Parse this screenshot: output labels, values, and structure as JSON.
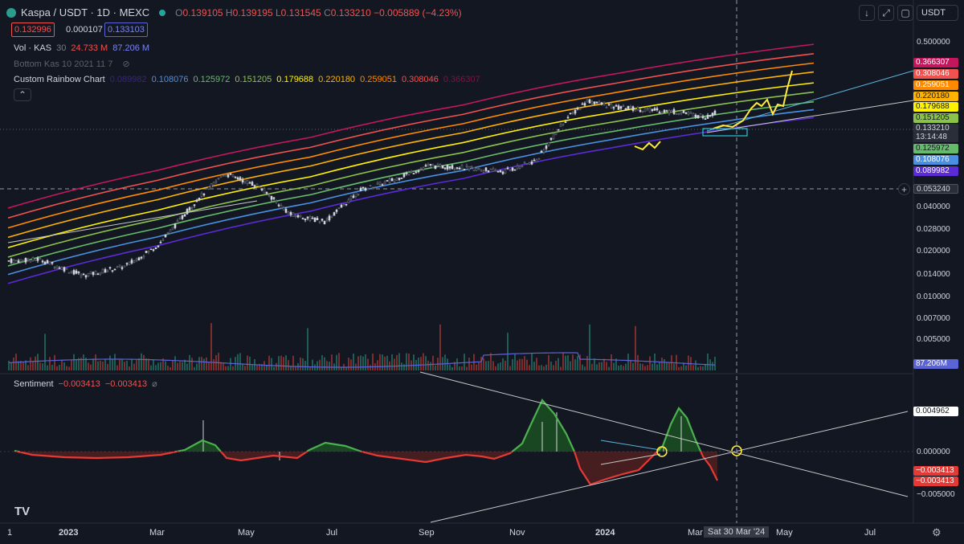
{
  "header": {
    "symbol": "Kaspa / USDT · 1D · MEXC",
    "o_label": "O",
    "o_value": "0.139105",
    "h_label": "H",
    "h_value": "0.139195",
    "l_label": "L",
    "l_value": "0.131545",
    "c_label": "C",
    "c_value": "0.133210",
    "change": "−0.005889 (−4.23%)",
    "bid": "0.132996",
    "spread": "0.000107",
    "ask": "0.133103",
    "currency": "USDT"
  },
  "indicators": {
    "volume": {
      "name": "Vol · KAS",
      "length": "30",
      "value1": "24.733 M",
      "value2": "87.206 M"
    },
    "bottom": {
      "name": "Bottom Kas 10 2021 11 7"
    },
    "rainbow": {
      "name": "Custom Rainbow Chart",
      "values": [
        "0.089982",
        "0.108076",
        "0.125972",
        "0.151205",
        "0.179688",
        "0.220180",
        "0.259051",
        "0.308046",
        "0.366307"
      ]
    },
    "sentiment": {
      "name": "Sentiment",
      "value1": "−0.003413",
      "value2": "−0.003413"
    }
  },
  "colors": {
    "band_colors": [
      "#5b2bd6",
      "#4a90e2",
      "#66bb6a",
      "#8bc34a",
      "#fff200",
      "#ffb300",
      "#ff8a00",
      "#f0524f",
      "#c2185b"
    ],
    "up": "#26a69a",
    "down": "#ef5350",
    "sentiment_pos": "#4caf50",
    "sentiment_neg": "#e53935"
  },
  "price_axis": {
    "ticks": [
      "0.500000",
      "0.040000",
      "0.028000",
      "0.020000",
      "0.014000",
      "0.010000",
      "0.007000",
      "0.005000"
    ],
    "band_labels": [
      "0.366307",
      "0.308046",
      "0.259051",
      "0.220180",
      "0.179688",
      "0.151205",
      "0.133210",
      "13:14:48",
      "0.125972",
      "0.108076",
      "0.089982"
    ],
    "crosshair_price": "0.053240",
    "volume_label": "87.206M"
  },
  "sentiment_axis": {
    "ticks": [
      "0.000000",
      "−0.005000"
    ],
    "labels": [
      "0.004962",
      "−0.003413",
      "−0.003413"
    ]
  },
  "time_axis": {
    "ticks": [
      "1",
      "2023",
      "Mar",
      "May",
      "Jul",
      "Sep",
      "Nov",
      "2024",
      "Mar",
      "May",
      "Jul"
    ],
    "crosshair_date": "Sat 30 Mar '24"
  },
  "chart_data": {
    "type": "line",
    "title": "Kaspa / USDT · 1D · MEXC",
    "scale": "log",
    "ylim": [
      0.0035,
      0.6
    ],
    "x_range": [
      "2022-12-01",
      "2024-08-15"
    ],
    "grid": false,
    "legend": "top-left",
    "series": [
      {
        "name": "Custom Rainbow Chart",
        "dates": [
          "2022-12-01",
          "2023-03-01",
          "2023-06-01",
          "2023-09-01",
          "2023-12-01",
          "2024-03-30"
        ],
        "values": [
          0.0045,
          0.009,
          0.017,
          0.031,
          0.055,
          0.095
        ]
      },
      {
        "dates": [
          "2022-12-01",
          "2023-03-01",
          "2023-06-01",
          "2023-09-01",
          "2023-12-01",
          "2024-03-30"
        ],
        "values": [
          0.0053,
          0.0106,
          0.0198,
          0.036,
          0.064,
          0.11
        ]
      },
      {
        "dates": [
          "2022-12-01",
          "2023-03-01",
          "2023-06-01",
          "2023-09-01",
          "2023-12-01",
          "2024-03-30"
        ],
        "values": [
          0.0062,
          0.0124,
          0.023,
          0.042,
          0.074,
          0.127
        ]
      },
      {
        "dates": [
          "2022-12-01",
          "2023-03-01",
          "2023-06-01",
          "2023-09-01",
          "2023-12-01",
          "2024-03-30"
        ],
        "values": [
          0.0073,
          0.0146,
          0.027,
          0.05,
          0.088,
          0.152
        ]
      },
      {
        "dates": [
          "2022-12-01",
          "2023-03-01",
          "2023-06-01",
          "2023-09-01",
          "2023-12-01",
          "2024-03-30"
        ],
        "values": [
          0.0087,
          0.0173,
          0.032,
          0.06,
          0.105,
          0.18
        ]
      },
      {
        "dates": [
          "2022-12-01",
          "2023-03-01",
          "2023-06-01",
          "2023-09-01",
          "2023-12-01",
          "2024-03-30"
        ],
        "values": [
          0.0105,
          0.021,
          0.039,
          0.072,
          0.127,
          0.22
        ]
      },
      {
        "dates": [
          "2022-12-01",
          "2023-03-01",
          "2023-06-01",
          "2023-09-01",
          "2023-12-01",
          "2024-03-30"
        ],
        "values": [
          0.0125,
          0.025,
          0.046,
          0.085,
          0.15,
          0.259
        ]
      },
      {
        "dates": [
          "2022-12-01",
          "2023-03-01",
          "2023-06-01",
          "2023-09-01",
          "2023-12-01",
          "2024-03-30"
        ],
        "values": [
          0.015,
          0.03,
          0.055,
          0.101,
          0.178,
          0.308
        ]
      },
      {
        "dates": [
          "2022-12-01",
          "2023-03-01",
          "2023-06-01",
          "2023-09-01",
          "2023-12-01",
          "2024-03-30"
        ],
        "values": [
          0.018,
          0.036,
          0.066,
          0.12,
          0.212,
          0.366
        ]
      },
      {
        "dates": [
          "2022-12-01",
          "2022-12-20",
          "2023-01-15",
          "2023-02-10",
          "2023-03-01",
          "2023-03-25",
          "2023-04-10",
          "2023-05-01",
          "2023-05-20",
          "2023-06-10",
          "2023-07-01",
          "2023-07-20",
          "2023-08-10",
          "2023-09-01",
          "2023-09-25",
          "2023-10-15",
          "2023-11-01",
          "2023-11-15",
          "2023-12-01",
          "2023-12-20",
          "2024-01-10",
          "2024-01-25",
          "2024-02-10",
          "2024-02-25",
          "2024-03-10",
          "2024-03-20"
        ],
        "values": [
          0.0068,
          0.007,
          0.0052,
          0.0062,
          0.009,
          0.021,
          0.034,
          0.027,
          0.016,
          0.014,
          0.025,
          0.03,
          0.039,
          0.038,
          0.035,
          0.043,
          0.09,
          0.13,
          0.115,
          0.11,
          0.105,
          0.096,
          0.12,
          0.165,
          0.155,
          0.1335
        ]
      }
    ]
  }
}
